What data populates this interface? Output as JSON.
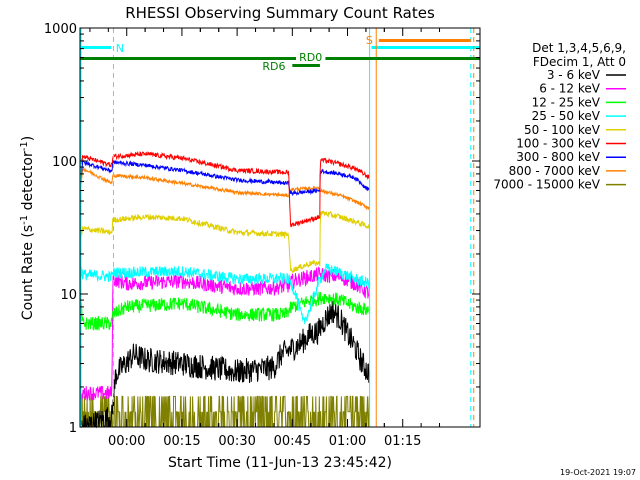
{
  "chart_data": {
    "type": "line",
    "title": "RHESSI Observing Summary Count Rates",
    "xlabel": "Start Time (11-Jun-13 23:45:42)",
    "ylabel_main": "Count Rate (s",
    "ylabel_sup1": "-1",
    "ylabel_mid": " detector",
    "ylabel_sup2": "-1",
    "ylabel_end": ")",
    "timestamp": "19-Oct-2021 19:07",
    "y_scale": "log",
    "ylim": [
      1,
      1000
    ],
    "xlim_minutes": [
      -12.7,
      96
    ],
    "x_tick_labels": [
      "00:00",
      "00:15",
      "00:30",
      "00:45",
      "01:00",
      "01:15"
    ],
    "x_tick_minutes": [
      0,
      15,
      30,
      45,
      60,
      75
    ],
    "y_tick_labels": [
      "1",
      "10",
      "100",
      "1000"
    ],
    "y_tick_values": [
      1,
      10,
      100,
      1000
    ],
    "legend": {
      "header1": "Det 1,3,4,5,6,9,",
      "header2": "FDecim 1, Att 0",
      "position": "right"
    },
    "annotations": {
      "night_label": "N",
      "saa_label": "S",
      "rd0_label": "RD0",
      "rd6_label": "RD6"
    },
    "data_gap_minutes": [
      66,
      96
    ],
    "series": [
      {
        "name": "3 - 6 keV",
        "color": "#000000",
        "level_points": [
          [
            -12.7,
            1.0
          ],
          [
            -12.0,
            1.0
          ],
          [
            -4.0,
            1.2
          ],
          [
            -3.0,
            2.5
          ],
          [
            2.0,
            3.5
          ],
          [
            5.0,
            3.2
          ],
          [
            15.0,
            3.0
          ],
          [
            30.0,
            2.6
          ],
          [
            40.0,
            2.8
          ],
          [
            42.0,
            3.5
          ],
          [
            47.0,
            4.2
          ],
          [
            50.0,
            5.0
          ],
          [
            52.0,
            5.2
          ],
          [
            54.0,
            6.5
          ],
          [
            56.0,
            7.5
          ],
          [
            58.0,
            6.5
          ],
          [
            60.0,
            5.0
          ],
          [
            62.0,
            4.0
          ],
          [
            64.0,
            3.0
          ],
          [
            66.0,
            2.5
          ]
        ],
        "noise": 0.22
      },
      {
        "name": "6 - 12 keV",
        "color": "#ff00ff",
        "level_points": [
          [
            -12.7,
            1.0
          ],
          [
            -12.0,
            1.8
          ],
          [
            -4.0,
            1.8
          ],
          [
            -3.8,
            13.0
          ],
          [
            0.0,
            12.0
          ],
          [
            15.0,
            12.5
          ],
          [
            30.0,
            11.0
          ],
          [
            38.0,
            11.0
          ],
          [
            44.0,
            11.5
          ],
          [
            45.0,
            12.5
          ],
          [
            52.0,
            14.0
          ],
          [
            58.0,
            13.5
          ],
          [
            62.0,
            12.0
          ],
          [
            66.0,
            10.0
          ]
        ],
        "noise": 0.13
      },
      {
        "name": "12 - 25 keV",
        "color": "#00ff00",
        "level_points": [
          [
            -12.7,
            10.0
          ],
          [
            -12.0,
            6.0
          ],
          [
            -4.0,
            6.0
          ],
          [
            -3.8,
            7.0
          ],
          [
            0.0,
            8.0
          ],
          [
            15.0,
            8.5
          ],
          [
            30.0,
            7.0
          ],
          [
            43.0,
            7.0
          ],
          [
            45.0,
            8.0
          ],
          [
            50.0,
            9.0
          ],
          [
            54.0,
            9.5
          ],
          [
            58.0,
            9.0
          ],
          [
            62.0,
            8.0
          ],
          [
            66.0,
            7.5
          ]
        ],
        "noise": 0.12
      },
      {
        "name": "25 - 50 keV",
        "color": "#00ffff",
        "level_points": [
          [
            -12.7,
            17.0
          ],
          [
            -12.0,
            14.0
          ],
          [
            -4.0,
            13.5
          ],
          [
            -3.8,
            14.5
          ],
          [
            0.0,
            14.5
          ],
          [
            15.0,
            14.8
          ],
          [
            30.0,
            13.0
          ],
          [
            44.0,
            13.0
          ],
          [
            46.0,
            10.0
          ],
          [
            48.0,
            6.0
          ],
          [
            50.0,
            8.0
          ],
          [
            52.0,
            12.0
          ],
          [
            54.0,
            15.5
          ],
          [
            58.0,
            14.5
          ],
          [
            62.0,
            13.0
          ],
          [
            66.0,
            12.0
          ]
        ],
        "noise": 0.1
      },
      {
        "name": "50 - 100 keV",
        "color": "#e0d000",
        "level_points": [
          [
            -12.7,
            24.0
          ],
          [
            -12.0,
            31.0
          ],
          [
            -4.0,
            29.0
          ],
          [
            -3.8,
            36.0
          ],
          [
            5.0,
            38.0
          ],
          [
            15.0,
            37.0
          ],
          [
            30.0,
            29.0
          ],
          [
            44.0,
            28.0
          ],
          [
            44.5,
            15.0
          ],
          [
            50.0,
            17.0
          ],
          [
            52.5,
            17.0
          ],
          [
            52.6,
            41.0
          ],
          [
            58.0,
            38.0
          ],
          [
            62.0,
            35.0
          ],
          [
            66.0,
            32.0
          ]
        ],
        "noise": 0.05
      },
      {
        "name": "100 - 300 keV",
        "color": "#ff0000",
        "level_points": [
          [
            -12.7,
            85.0
          ],
          [
            -12.0,
            108.0
          ],
          [
            -4.0,
            93.0
          ],
          [
            -3.8,
            108.0
          ],
          [
            5.0,
            113.0
          ],
          [
            15.0,
            105.0
          ],
          [
            30.0,
            85.0
          ],
          [
            44.0,
            82.0
          ],
          [
            44.5,
            33.0
          ],
          [
            52.5,
            38.0
          ],
          [
            52.6,
            102.0
          ],
          [
            56.0,
            98.0
          ],
          [
            62.0,
            88.0
          ],
          [
            66.0,
            75.0
          ]
        ],
        "noise": 0.04
      },
      {
        "name": "300 - 800 keV",
        "color": "#0000ff",
        "level_points": [
          [
            -12.7,
            60.0
          ],
          [
            -12.0,
            98.0
          ],
          [
            -4.0,
            84.0
          ],
          [
            -3.8,
            98.0
          ],
          [
            5.0,
            93.0
          ],
          [
            15.0,
            85.0
          ],
          [
            30.0,
            72.0
          ],
          [
            44.0,
            68.0
          ],
          [
            44.5,
            57.0
          ],
          [
            52.5,
            60.0
          ],
          [
            52.6,
            84.0
          ],
          [
            58.0,
            80.0
          ],
          [
            62.0,
            75.0
          ],
          [
            66.0,
            60.0
          ]
        ],
        "noise": 0.035
      },
      {
        "name": "800 - 7000 keV",
        "color": "#ff8000",
        "level_points": [
          [
            -12.7,
            52.0
          ],
          [
            -12.0,
            88.0
          ],
          [
            -4.0,
            68.0
          ],
          [
            -3.8,
            78.0
          ],
          [
            5.0,
            75.0
          ],
          [
            15.0,
            68.0
          ],
          [
            30.0,
            58.0
          ],
          [
            44.0,
            55.0
          ],
          [
            44.5,
            61.0
          ],
          [
            52.5,
            63.0
          ],
          [
            52.6,
            60.0
          ],
          [
            58.0,
            55.0
          ],
          [
            62.0,
            50.0
          ],
          [
            66.0,
            44.0
          ]
        ],
        "noise": 0.03
      },
      {
        "name": "7000 - 15000 keV",
        "color": "#808000",
        "level_points": [
          [
            -12.7,
            1.0
          ],
          [
            -12.0,
            1.3
          ],
          [
            66.0,
            1.3
          ]
        ],
        "noise": 0.0
      }
    ]
  }
}
